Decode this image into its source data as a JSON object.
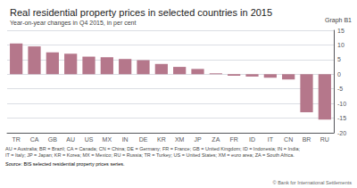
{
  "chart_data": {
    "type": "bar",
    "title": "Real residential property prices in selected countries in 2015",
    "subtitle": "Year-on-year changes in Q4 2015, in per cent",
    "annotations": [
      {
        "text": "Graph B1"
      },
      {
        "text": "AU = Australia; BR = Brazil; CA = Canada; CN = China; DE = Germany; FR = France; GB = United Kingdom; ID = Indonesia; IN = India;"
      },
      {
        "text": "IT = Italy; JP = Japan; KR = Korea; MX = Mexico; RU = Russia; TR = Turkey; US = United States; XM = euro area; ZA = South Africa."
      },
      {
        "text": "Source:"
      },
      {
        "text": "BIS selected residential property prices series.",
        "color": "#4472c4"
      },
      {
        "text": "© Bank for International Settlements"
      }
    ],
    "categories": [
      "TR",
      "CA",
      "GB",
      "AU",
      "US",
      "MX",
      "IN",
      "DE",
      "KR",
      "XM",
      "JP",
      "ZA",
      "FR",
      "ID",
      "IT",
      "CN",
      "BR",
      "RU"
    ],
    "values": [
      10.5,
      9.5,
      7.5,
      7.0,
      6.0,
      5.8,
      5.2,
      4.8,
      3.5,
      2.5,
      1.8,
      0.3,
      -0.5,
      -0.8,
      -1.2,
      -1.8,
      -13.0,
      -15.5
    ],
    "color": "#b5778b",
    "ylim": [
      -20,
      15
    ],
    "yticks": [
      -20,
      -15,
      -10,
      -5,
      0,
      5,
      10,
      15
    ],
    "grid": true
  }
}
